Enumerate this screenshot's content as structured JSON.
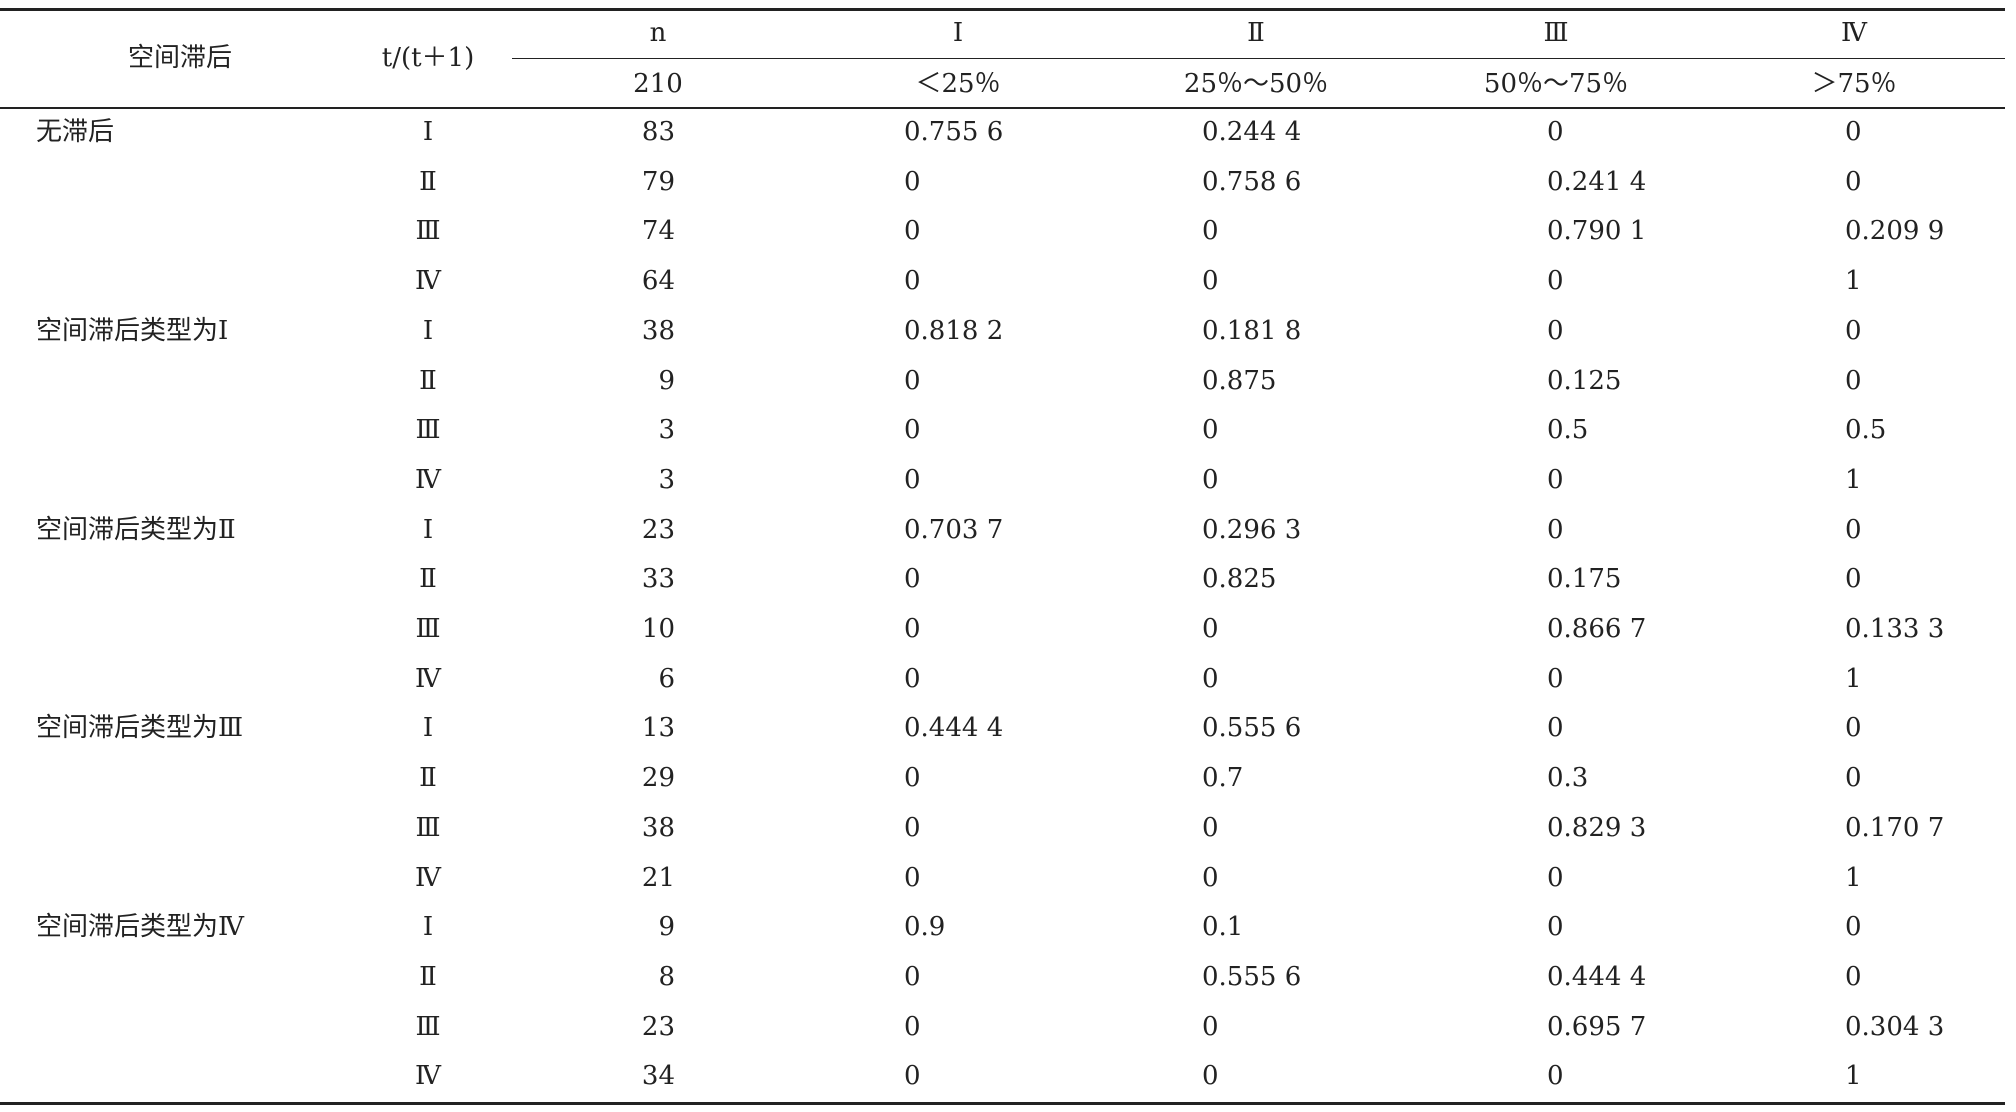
{
  "header": {
    "lag": "空间滞后",
    "period": "t/(t＋1)",
    "columns": [
      "n",
      "Ⅰ",
      "Ⅱ",
      "Ⅲ",
      "Ⅳ"
    ],
    "subcolumns": [
      "210",
      "＜25％",
      "25％～50％",
      "50％～75％",
      "＞75％"
    ]
  },
  "groups": [
    {
      "label": "无滞后",
      "rows": [
        [
          "Ⅰ",
          "83",
          "0.755 6",
          "0.244 4",
          "0",
          "0"
        ],
        [
          "Ⅱ",
          "79",
          "0",
          "0.758 6",
          "0.241 4",
          "0"
        ],
        [
          "Ⅲ",
          "74",
          "0",
          "0",
          "0.790 1",
          "0.209 9"
        ],
        [
          "Ⅳ",
          "64",
          "0",
          "0",
          "0",
          "1"
        ]
      ]
    },
    {
      "label": "空间滞后类型为Ⅰ",
      "rows": [
        [
          "Ⅰ",
          "38",
          "0.818 2",
          "0.181 8",
          "0",
          "0"
        ],
        [
          "Ⅱ",
          "9",
          "0",
          "0.875",
          "0.125",
          "0"
        ],
        [
          "Ⅲ",
          "3",
          "0",
          "0",
          "0.5",
          "0.5"
        ],
        [
          "Ⅳ",
          "3",
          "0",
          "0",
          "0",
          "1"
        ]
      ]
    },
    {
      "label": "空间滞后类型为Ⅱ",
      "rows": [
        [
          "Ⅰ",
          "23",
          "0.703 7",
          "0.296 3",
          "0",
          "0"
        ],
        [
          "Ⅱ",
          "33",
          "0",
          "0.825",
          "0.175",
          "0"
        ],
        [
          "Ⅲ",
          "10",
          "0",
          "0",
          "0.866 7",
          "0.133 3"
        ],
        [
          "Ⅳ",
          "6",
          "0",
          "0",
          "0",
          "1"
        ]
      ]
    },
    {
      "label": "空间滞后类型为Ⅲ",
      "rows": [
        [
          "Ⅰ",
          "13",
          "0.444 4",
          "0.555 6",
          "0",
          "0"
        ],
        [
          "Ⅱ",
          "29",
          "0",
          "0.7",
          "0.3",
          "0"
        ],
        [
          "Ⅲ",
          "38",
          "0",
          "0",
          "0.829 3",
          "0.170 7"
        ],
        [
          "Ⅳ",
          "21",
          "0",
          "0",
          "0",
          "1"
        ]
      ]
    },
    {
      "label": "空间滞后类型为Ⅳ",
      "rows": [
        [
          "Ⅰ",
          "9",
          "0.9",
          "0.1",
          "0",
          "0"
        ],
        [
          "Ⅱ",
          "8",
          "0",
          "0.555 6",
          "0.444 4",
          "0"
        ],
        [
          "Ⅲ",
          "23",
          "0",
          "0",
          "0.695 7",
          "0.304 3"
        ],
        [
          "Ⅳ",
          "34",
          "0",
          "0",
          "0",
          "1"
        ]
      ]
    }
  ]
}
